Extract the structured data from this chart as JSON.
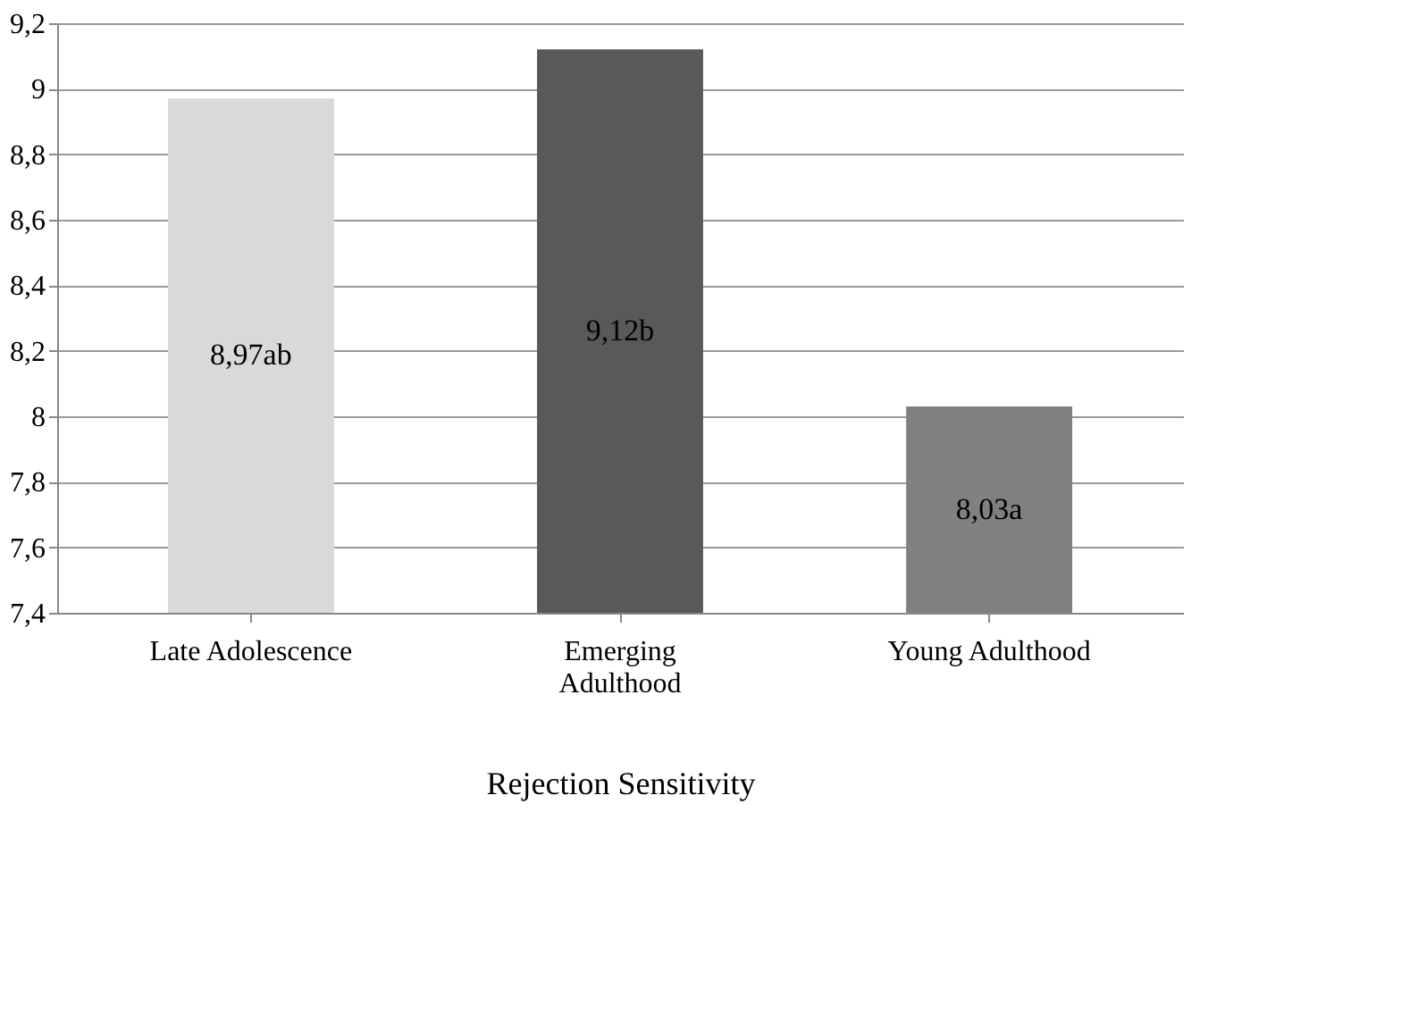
{
  "chart_data": {
    "type": "bar",
    "xlabel": "Rejection Sensitivity",
    "categories": [
      "Late Adolescence",
      "Emerging Adulthood",
      "Young Adulthood"
    ],
    "values": [
      8.97,
      9.12,
      8.03
    ],
    "colors": [
      "#d9d9d9",
      "#595959",
      "#808080"
    ],
    "value_labels": [
      "8,97ab",
      "9,12b",
      "8,03a"
    ],
    "ylim": [
      7.4,
      9.2
    ],
    "yticks": [
      {
        "value": 7.4,
        "label": "7,4"
      },
      {
        "value": 7.6,
        "label": "7,6"
      },
      {
        "value": 7.8,
        "label": "7,8"
      },
      8,
      {
        "value": 8.2,
        "label": "8,2"
      },
      {
        "value": 8.4,
        "label": "8,4"
      },
      {
        "value": 8.6,
        "label": "8,6"
      },
      {
        "value": 8.8,
        "label": "8,8"
      },
      9,
      {
        "value": 9.2,
        "label": "9,2"
      }
    ],
    "grid": "y"
  }
}
